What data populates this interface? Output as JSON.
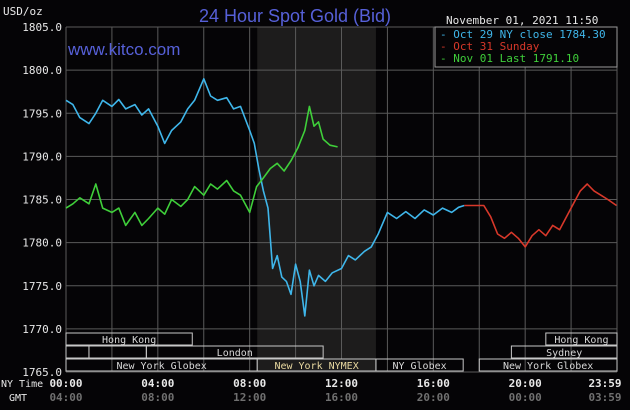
{
  "chart_data": {
    "type": "line",
    "title": "24 Hour Spot Gold (Bid)",
    "ylabel": "USD/oz",
    "watermark": "www.kitco.com",
    "timestamp": "November 01, 2021 11:50",
    "ylim": [
      1765,
      1805
    ],
    "y_ticks": [
      "1805.0",
      "1800.0",
      "1795.0",
      "1790.0",
      "1785.0",
      "1780.0",
      "1775.0",
      "1770.0",
      "1765.0"
    ],
    "xlim_hours": [
      0,
      24
    ],
    "x_ticks_ny_label": "NY Time",
    "x_ticks_gmt_label": "GMT",
    "x_ticks_ny": [
      "00:00",
      "04:00",
      "08:00",
      "12:00",
      "16:00",
      "20:00",
      "23:59"
    ],
    "x_ticks_gmt": [
      "04:00",
      "08:00",
      "12:00",
      "16:00",
      "20:00",
      "00:00",
      "03:59"
    ],
    "grid": true,
    "legend_position": "top-right",
    "shaded_hours": [
      8.33,
      13.5
    ],
    "series": [
      {
        "name": "Oct 29 NY close 1784.30",
        "color": "#3fb6ea",
        "x": [
          0,
          0.3,
          0.6,
          1,
          1.3,
          1.6,
          2,
          2.3,
          2.6,
          3,
          3.3,
          3.6,
          4,
          4.3,
          4.6,
          5,
          5.3,
          5.6,
          6,
          6.3,
          6.6,
          7,
          7.3,
          7.6,
          8,
          8.2,
          8.4,
          8.6,
          8.8,
          9,
          9.2,
          9.4,
          9.6,
          9.8,
          10,
          10.2,
          10.4,
          10.6,
          10.8,
          11,
          11.3,
          11.6,
          12,
          12.3,
          12.6,
          13,
          13.3,
          13.6,
          14,
          14.4,
          14.8,
          15.2,
          15.6,
          16,
          16.4,
          16.8,
          17.1,
          17.35
        ],
        "y": [
          1796.5,
          1796,
          1794.5,
          1793.8,
          1795,
          1796.5,
          1795.8,
          1796.6,
          1795.5,
          1796,
          1794.8,
          1795.5,
          1793.5,
          1791.5,
          1793,
          1794,
          1795.5,
          1796.5,
          1799,
          1797,
          1796.5,
          1796.8,
          1795.5,
          1795.8,
          1793,
          1791.5,
          1788.5,
          1786,
          1784,
          1777,
          1778.5,
          1776,
          1775.5,
          1774,
          1777.5,
          1775.5,
          1771.5,
          1776.8,
          1775,
          1776.2,
          1775.5,
          1776.5,
          1777,
          1778.5,
          1778,
          1779,
          1779.5,
          1781,
          1783.5,
          1782.8,
          1783.6,
          1782.8,
          1783.8,
          1783.2,
          1784,
          1783.5,
          1784.1,
          1784.3
        ]
      },
      {
        "name": "Oct 31 Sunday",
        "color": "#d8382a",
        "x": [
          17.35,
          17.8,
          18.2,
          18.5,
          18.8,
          19.1,
          19.4,
          19.7,
          20,
          20.3,
          20.6,
          20.9,
          21.2,
          21.5,
          21.8,
          22.1,
          22.4,
          22.7,
          23,
          23.3,
          23.6,
          23.98
        ],
        "y": [
          1784.3,
          1784.3,
          1784.3,
          1783,
          1781,
          1780.5,
          1781.2,
          1780.5,
          1779.5,
          1780.8,
          1781.5,
          1780.8,
          1782,
          1781.5,
          1783,
          1784.5,
          1786,
          1786.8,
          1786,
          1785.5,
          1785,
          1784.3
        ]
      },
      {
        "name": "Nov 01 Last 1791.10",
        "color": "#3fcf3a",
        "x": [
          0,
          0.3,
          0.6,
          1,
          1.3,
          1.6,
          2,
          2.3,
          2.6,
          3,
          3.3,
          3.6,
          4,
          4.3,
          4.6,
          5,
          5.3,
          5.6,
          6,
          6.3,
          6.6,
          7,
          7.3,
          7.6,
          8,
          8.3,
          8.6,
          8.9,
          9.2,
          9.5,
          9.8,
          10.1,
          10.4,
          10.6,
          10.8,
          11,
          11.2,
          11.5,
          11.83
        ],
        "y": [
          1784,
          1784.5,
          1785.2,
          1784.5,
          1786.8,
          1784,
          1783.5,
          1784,
          1782,
          1783.5,
          1782,
          1782.8,
          1784,
          1783.3,
          1785,
          1784.2,
          1785,
          1786.5,
          1785.5,
          1786.8,
          1786.2,
          1787.2,
          1786,
          1785.5,
          1783.5,
          1786.5,
          1787.5,
          1788.6,
          1789.2,
          1788.3,
          1789.5,
          1791,
          1793,
          1795.8,
          1793.5,
          1794,
          1792,
          1791.3,
          1791.1
        ]
      }
    ],
    "sessions": [
      {
        "label": "Hong Kong",
        "row": 1,
        "start": 0,
        "end": 5.5
      },
      {
        "label": "",
        "row": 2,
        "start": 0,
        "end": 1
      },
      {
        "label": "",
        "row": 2,
        "start": 1,
        "end": 3.5
      },
      {
        "label": "London",
        "row": 2,
        "start": 3.5,
        "end": 11.2
      },
      {
        "label": "New York Globex",
        "row": 3,
        "start": 0,
        "end": 8.33
      },
      {
        "label": "New York NYMEX",
        "row": 3,
        "start": 8.33,
        "end": 13.5
      },
      {
        "label": "NY Globex",
        "row": 3,
        "start": 13.5,
        "end": 17.3
      },
      {
        "label": "Hong Kong",
        "row": 1,
        "start": 20.9,
        "end": 24
      },
      {
        "label": "Sydney",
        "row": 2,
        "start": 19.4,
        "end": 24
      },
      {
        "label": "New York Globex",
        "row": 3,
        "start": 18,
        "end": 24
      }
    ]
  }
}
